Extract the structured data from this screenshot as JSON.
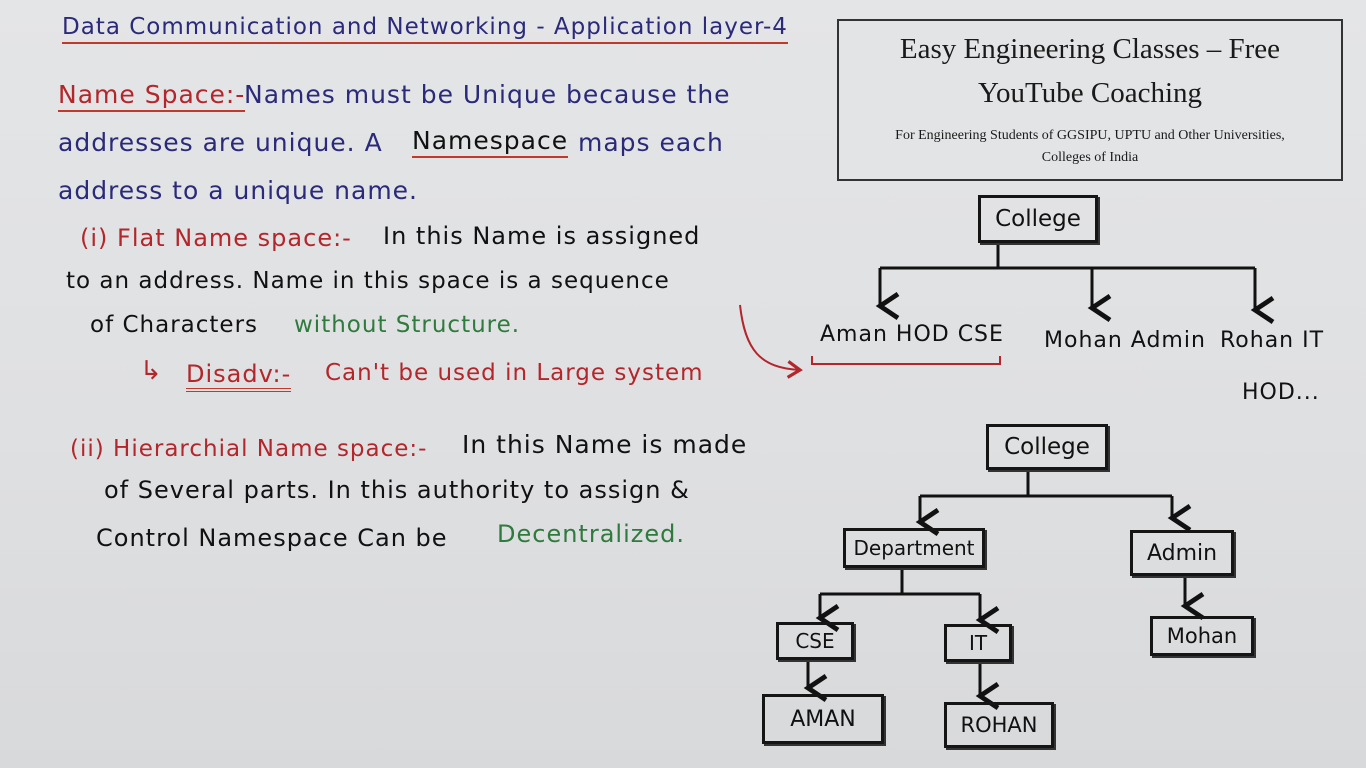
{
  "title": "Data Communication and Networking - Application layer-4",
  "banner": {
    "line1": "Easy Engineering Classes – Free",
    "line2": "YouTube Coaching",
    "line3": "For Engineering Students of GGSIPU, UPTU and Other Universities,",
    "line4": "Colleges of India"
  },
  "notes": {
    "namespace_heading": "Name Space:-",
    "line1_rest": "Names must be Unique because the",
    "line2_a": "addresses are unique. A",
    "line2_b": "Namespace",
    "line2_c": "maps each",
    "line3": "address to a unique name.",
    "flat_heading": "(i) Flat Name space:-",
    "flat_line1_rest": "In this Name is assigned",
    "flat_line2": "to an address. Name in this space is a sequence",
    "flat_line3_a": "of Characters",
    "flat_line3_b": "without Structure.",
    "disadv_arrow": "↳",
    "disadv_label": "Disadv:-",
    "disadv_text": "Can't be used in Large system",
    "hier_heading": "(ii) Hierarchial Name space:-",
    "hier_line1_rest": "In this Name is made",
    "hier_line2": "of Several parts. In this authority to assign &",
    "hier_line3_a": "Control Namespace Can be",
    "hier_line3_b": "Decentralized."
  },
  "flat_tree": {
    "root": "College",
    "children": [
      "Aman HOD CSE",
      "Mohan Admin",
      "Rohan IT"
    ],
    "extra": "HOD..."
  },
  "hier_tree": {
    "root": "College",
    "level1": [
      "Department",
      "Admin"
    ],
    "level2": [
      "CSE",
      "IT",
      "Mohan"
    ],
    "level3": [
      "AMAN",
      "ROHAN"
    ]
  }
}
